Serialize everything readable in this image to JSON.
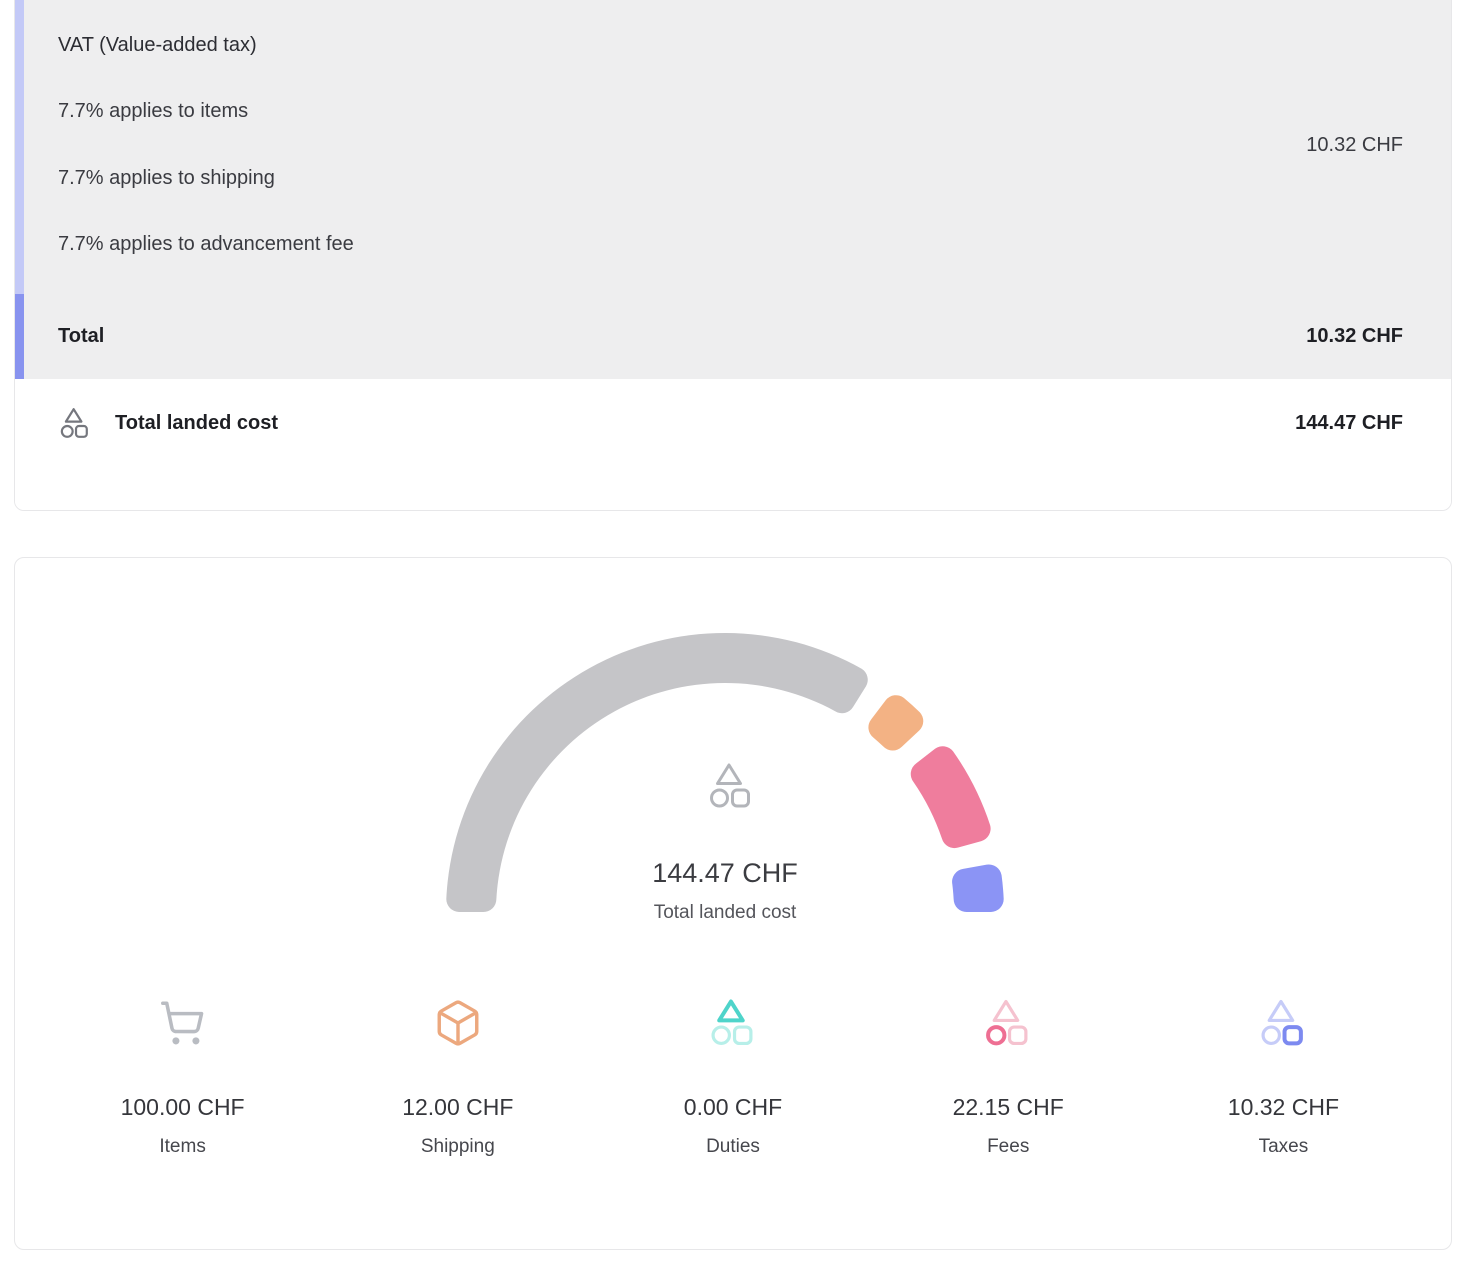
{
  "tax_section": {
    "title": "VAT (Value-added tax)",
    "lines": [
      "7.7% applies to items",
      "7.7% applies to shipping",
      "7.7% applies to advancement fee"
    ],
    "amount": "10.32 CHF",
    "total_label": "Total",
    "total_amount": "10.32 CHF"
  },
  "total_landed": {
    "label": "Total landed cost",
    "amount": "144.47 CHF"
  },
  "chart_data": {
    "type": "gauge",
    "title": "144.47 CHF",
    "subtitle": "Total landed cost",
    "total": 144.47,
    "unit": "CHF",
    "angle_span_deg": 180,
    "segments": [
      {
        "name": "Items",
        "value": 100.0,
        "color": "#c5c5c8"
      },
      {
        "name": "Shipping",
        "value": 12.0,
        "color": "#f3b284"
      },
      {
        "name": "Duties",
        "value": 0.0,
        "color": "#5ad6cc"
      },
      {
        "name": "Fees",
        "value": 22.15,
        "color": "#ef7d9d"
      },
      {
        "name": "Taxes",
        "value": 10.32,
        "color": "#8b94f5"
      }
    ]
  },
  "legend": [
    {
      "label": "Items",
      "value": "100.00 CHF",
      "icon": "cart-icon",
      "color": "#b9bcc2",
      "soft": "#b9bcc2"
    },
    {
      "label": "Shipping",
      "value": "12.00 CHF",
      "icon": "package-icon",
      "color": "#eca87e",
      "soft": "#eca87e"
    },
    {
      "label": "Duties",
      "value": "0.00 CHF",
      "icon": "trio-triangle-icon",
      "color": "#4ed4ca",
      "soft": "#b7efe9"
    },
    {
      "label": "Fees",
      "value": "22.15 CHF",
      "icon": "trio-circle-icon",
      "color": "#ee6f93",
      "soft": "#f5c2cf"
    },
    {
      "label": "Taxes",
      "value": "10.32 CHF",
      "icon": "trio-square-icon",
      "color": "#7d8af0",
      "soft": "#c6ccf8"
    }
  ],
  "colors": {
    "section_bg": "#eeeeef",
    "accent_light": "#c3c9f7",
    "accent_dark": "#8893ef",
    "card_border": "#e7e7e9",
    "gauge_center_icon": "#b3b5ba",
    "landed_row_icon": "#75777e"
  }
}
